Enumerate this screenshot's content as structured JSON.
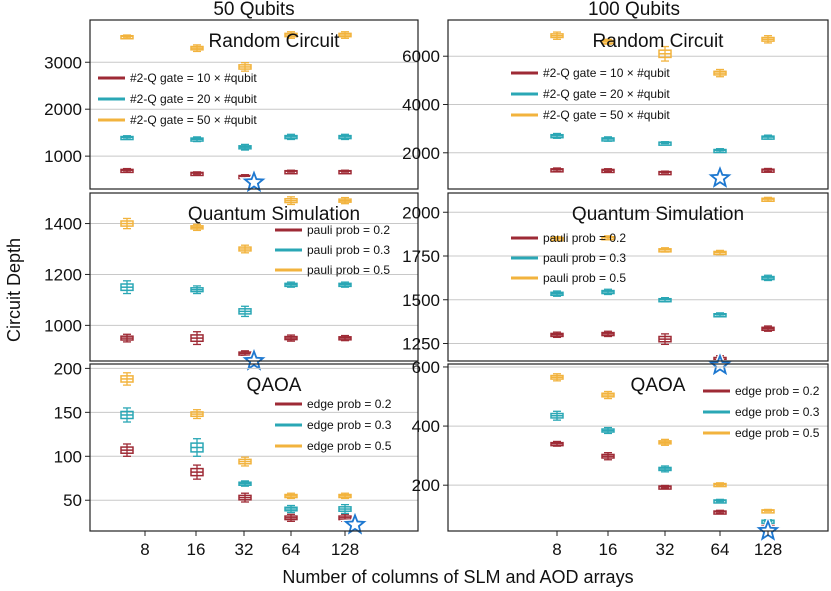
{
  "colors": {
    "dark_red": "#9e2a35",
    "teal": "#2aa7b5",
    "gold": "#f2b33d",
    "star": "#1e78d0",
    "grid": "#c8c8c8"
  },
  "figure": {
    "col_titles": [
      "50 Qubits",
      "100 Qubits"
    ],
    "ylabel": "Circuit Depth",
    "xlabel": "Number of columns of SLM and AOD arrays"
  },
  "chart_data": [
    {
      "type": "box",
      "title": "Random Circuit",
      "column": "50 Qubits",
      "row": 0,
      "categories": [
        "8",
        "16",
        "32",
        "64",
        "128"
      ],
      "show_xticks": false,
      "ylim": [
        300,
        3900
      ],
      "yticks": [
        1000,
        2000,
        3000
      ],
      "legend": [
        "#2-Q gate = 10 × #qubit",
        "#2-Q gate = 20 × #qubit",
        "#2-Q gate = 50 × #qubit"
      ],
      "series": [
        {
          "name": "#2-Q gate = 10 × #qubit",
          "values": [
            700,
            640,
            570,
            680,
            680
          ],
          "spread": [
            35,
            25,
            35,
            20,
            20
          ]
        },
        {
          "name": "#2-Q gate = 20 × #qubit",
          "values": [
            1400,
            1360,
            1190,
            1410,
            1410
          ],
          "spread": [
            35,
            50,
            60,
            55,
            55
          ]
        },
        {
          "name": "#2-Q gate = 50 × #qubit",
          "values": [
            3550,
            3300,
            2900,
            3580,
            3580
          ],
          "spread": [
            30,
            70,
            90,
            70,
            70
          ]
        }
      ],
      "star": {
        "category": "32",
        "value": 440
      }
    },
    {
      "type": "box",
      "title": "Quantum Simulation",
      "column": "50 Qubits",
      "row": 1,
      "categories": [
        "8",
        "16",
        "32",
        "64",
        "128"
      ],
      "show_xticks": false,
      "ylim": [
        860,
        1520
      ],
      "yticks": [
        1000,
        1200,
        1400
      ],
      "legend": [
        "pauli prob = 0.2",
        "pauli prob = 0.3",
        "pauli prob = 0.5"
      ],
      "series": [
        {
          "name": "pauli prob = 0.2",
          "values": [
            950,
            950,
            890,
            950,
            950
          ],
          "spread": [
            15,
            25,
            10,
            12,
            10
          ]
        },
        {
          "name": "pauli prob = 0.3",
          "values": [
            1150,
            1140,
            1055,
            1160,
            1160
          ],
          "spread": [
            25,
            15,
            20,
            10,
            10
          ]
        },
        {
          "name": "pauli prob = 0.5",
          "values": [
            1400,
            1385,
            1300,
            1490,
            1490
          ],
          "spread": [
            20,
            12,
            15,
            15,
            12
          ]
        }
      ],
      "star": {
        "category": "32",
        "value": 860
      }
    },
    {
      "type": "box",
      "title": "QAOA",
      "column": "50 Qubits",
      "row": 2,
      "categories": [
        "8",
        "16",
        "32",
        "64",
        "128"
      ],
      "show_xticks": true,
      "ylim": [
        15,
        205
      ],
      "yticks": [
        50,
        100,
        150,
        200
      ],
      "legend": [
        "edge prob = 0.2",
        "edge prob = 0.3",
        "edge prob = 0.5"
      ],
      "series": [
        {
          "name": "edge prob = 0.2",
          "values": [
            107,
            82,
            53,
            30,
            30
          ],
          "spread": [
            7,
            8,
            5,
            4,
            4
          ]
        },
        {
          "name": "edge prob = 0.3",
          "values": [
            147,
            110,
            69,
            40,
            40
          ],
          "spread": [
            8,
            10,
            3,
            4,
            5
          ]
        },
        {
          "name": "edge prob = 0.5",
          "values": [
            188,
            148,
            94,
            55,
            55
          ],
          "spread": [
            7,
            5,
            5,
            3,
            3
          ]
        }
      ],
      "star": {
        "category": "128",
        "value": 22
      }
    },
    {
      "type": "box",
      "title": "Random Circuit",
      "column": "100 Qubits",
      "row": 0,
      "categories": [
        "8",
        "16",
        "32",
        "64",
        "128"
      ],
      "show_xticks": false,
      "ylim": [
        500,
        7500
      ],
      "yticks": [
        2000,
        4000,
        6000
      ],
      "legend": [
        "#2-Q gate = 10 × #qubit",
        "#2-Q gate = 20 × #qubit",
        "#2-Q gate = 50 × #qubit"
      ],
      "series": [
        {
          "name": "#2-Q gate = 10 × #qubit",
          "values": [
            1300,
            1280,
            1200,
            1100,
            1290
          ],
          "spread": [
            70,
            60,
            40,
            40,
            60
          ]
        },
        {
          "name": "#2-Q gate = 20 × #qubit",
          "values": [
            2700,
            2570,
            2420,
            2100,
            2650
          ],
          "spread": [
            100,
            90,
            40,
            70,
            80
          ]
        },
        {
          "name": "#2-Q gate = 50 × #qubit",
          "values": [
            6850,
            6600,
            6100,
            5300,
            6700
          ],
          "spread": [
            150,
            100,
            300,
            150,
            150
          ]
        }
      ],
      "star": {
        "category": "64",
        "value": 950
      }
    },
    {
      "type": "box",
      "title": "Quantum Simulation",
      "column": "100 Qubits",
      "row": 1,
      "categories": [
        "8",
        "16",
        "32",
        "64",
        "128"
      ],
      "show_xticks": false,
      "ylim": [
        1150,
        2110
      ],
      "yticks": [
        1250,
        1500,
        1750,
        2000
      ],
      "legend": [
        "pauli prob = 0.2",
        "pauli prob = 0.3",
        "pauli prob = 0.5"
      ],
      "series": [
        {
          "name": "pauli prob = 0.2",
          "values": [
            1300,
            1305,
            1275,
            1160,
            1335
          ],
          "spread": [
            15,
            15,
            30,
            20,
            15
          ]
        },
        {
          "name": "pauli prob = 0.3",
          "values": [
            1535,
            1545,
            1500,
            1415,
            1625
          ],
          "spread": [
            15,
            15,
            12,
            10,
            15
          ]
        },
        {
          "name": "pauli prob = 0.5",
          "values": [
            1850,
            1855,
            1785,
            1770,
            2075
          ],
          "spread": [
            10,
            10,
            12,
            12,
            10
          ]
        }
      ],
      "star": {
        "category": "64",
        "value": 1125
      }
    },
    {
      "type": "box",
      "title": "QAOA",
      "column": "100 Qubits",
      "row": 2,
      "categories": [
        "8",
        "16",
        "32",
        "64",
        "128"
      ],
      "show_xticks": true,
      "ylim": [
        45,
        610
      ],
      "yticks": [
        200,
        400,
        600
      ],
      "legend": [
        "edge prob = 0.2",
        "edge prob = 0.3",
        "edge prob = 0.5"
      ],
      "series": [
        {
          "name": "edge prob = 0.2",
          "values": [
            340,
            298,
            195,
            110,
            62
          ],
          "spread": [
            8,
            12,
            4,
            5,
            3
          ]
        },
        {
          "name": "edge prob = 0.3",
          "values": [
            435,
            385,
            255,
            148,
            80
          ],
          "spread": [
            15,
            10,
            10,
            4,
            3
          ]
        },
        {
          "name": "edge prob = 0.5",
          "values": [
            565,
            505,
            345,
            203,
            115
          ],
          "spread": [
            12,
            12,
            10,
            5,
            3
          ]
        }
      ],
      "star": {
        "category": "128",
        "value": 45
      }
    }
  ]
}
